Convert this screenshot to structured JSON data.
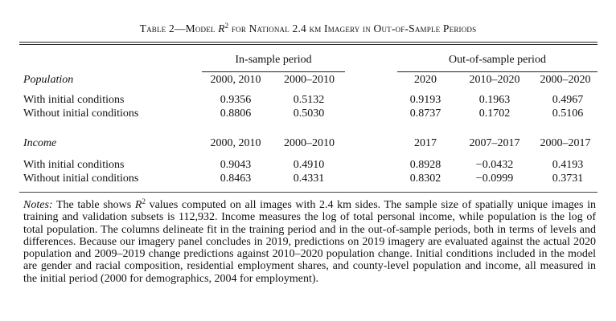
{
  "title": {
    "prefix": "Table 2—Model ",
    "r_symbol": "R",
    "r_sup": "2",
    "suffix": " for National 2.4 km Imagery in Out-of-Sample Periods"
  },
  "groups": {
    "in_sample": "In-sample period",
    "out_of_sample": "Out-of-sample period"
  },
  "population": {
    "section_label": "Population",
    "columns": [
      "2000, 2010",
      "2000–2010",
      "2020",
      "2010–2020",
      "2000–2020"
    ],
    "rows": [
      {
        "label": "With initial conditions",
        "values": [
          "0.9356",
          "0.5132",
          "0.9193",
          "0.1963",
          "0.4967"
        ]
      },
      {
        "label": "Without initial conditions",
        "values": [
          "0.8806",
          "0.5030",
          "0.8737",
          "0.1702",
          "0.5106"
        ]
      }
    ]
  },
  "income": {
    "section_label": "Income",
    "columns": [
      "2000, 2010",
      "2000–2010",
      "2017",
      "2007–2017",
      "2000–2017"
    ],
    "rows": [
      {
        "label": "With initial conditions",
        "values": [
          "0.9043",
          "0.4910",
          "0.8928",
          "−0.0432",
          "0.4193"
        ]
      },
      {
        "label": "Without initial conditions",
        "values": [
          "0.8463",
          "0.4331",
          "0.8302",
          "−0.0999",
          "0.3731"
        ]
      }
    ]
  },
  "notes": {
    "label": "Notes:",
    "text_before_r": " The table shows ",
    "r_symbol": "R",
    "r_sup": "2",
    "text_after_r": " values computed on all images with 2.4 km sides. The sample size of spatially unique images in training and validation subsets is 112,932. Income measures the log of total personal income, while population is the log of total population. The columns delineate fit in the training period and in the out-of-sample periods, both in terms of levels and differences. Because our imagery panel concludes in 2019, predictions on 2019 imagery are evaluated against the actual 2020 population and 2009–2019 change predictions against 2010–2020 population change. Initial conditions included in the model are gender and racial composition, residential employment shares, and county-level population and income, all measured in the initial period (2000 for demographics, 2004 for employment)."
  }
}
